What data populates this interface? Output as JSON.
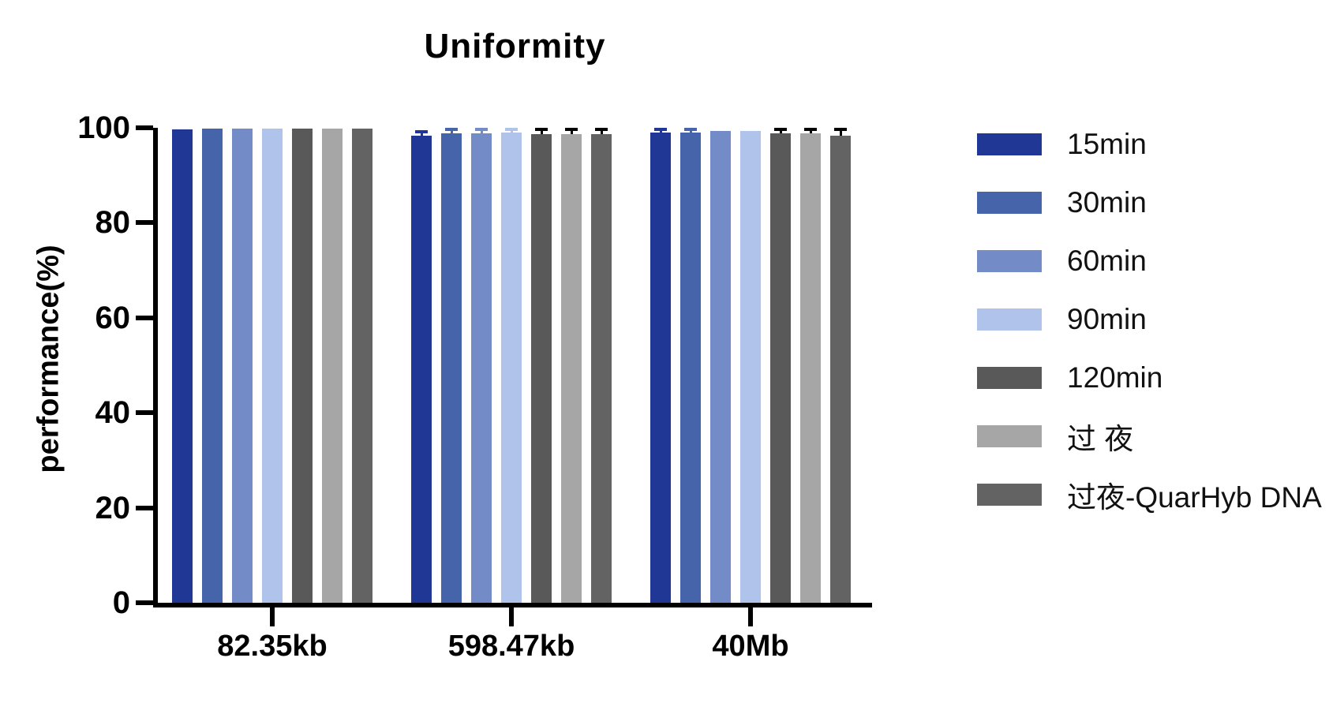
{
  "chart_data": {
    "type": "bar",
    "title": "Uniformity",
    "xlabel": "",
    "ylabel": "performance(%)",
    "categories": [
      "82.35kb",
      "598.47kb",
      "40Mb"
    ],
    "y_ticks": [
      0,
      20,
      40,
      60,
      80,
      100
    ],
    "ylim": [
      0,
      100
    ],
    "grid": false,
    "legend_position": "right",
    "background_color": "#FFFFFF",
    "axis_color": "#000000",
    "text_color": "#000000",
    "series": [
      {
        "name": "15min",
        "color": "#213796",
        "err_color": "self",
        "values": [
          99.7,
          98.4,
          99.5
        ],
        "errors": [
          0,
          0.4,
          0.4
        ]
      },
      {
        "name": "30min",
        "color": "#4664AA",
        "err_color": "self",
        "values": [
          99.9,
          98.9,
          99.8
        ],
        "errors": [
          0,
          0.4,
          0.4
        ]
      },
      {
        "name": "60min",
        "color": "#738CC8",
        "err_color": "self",
        "values": [
          99.9,
          98.9,
          99.4
        ],
        "errors": [
          0,
          0.5,
          0
        ]
      },
      {
        "name": "90min",
        "color": "#AFC3EB",
        "err_color": "self",
        "values": [
          99.9,
          99.1,
          99.4
        ],
        "errors": [
          0,
          0.4,
          0
        ]
      },
      {
        "name": "120min",
        "color": "#595959",
        "err_color": "black",
        "values": [
          99.9,
          99.4,
          99.7
        ],
        "errors": [
          0,
          0.6,
          0.5
        ]
      },
      {
        "name": "过 夜",
        "color": "#A6A6A6",
        "err_color": "black",
        "values": [
          99.9,
          99.5,
          99.8
        ],
        "errors": [
          0,
          0.6,
          0.5
        ]
      },
      {
        "name": "过夜-QuarHyb DNA",
        "color": "#636363",
        "err_color": "black",
        "values": [
          99.9,
          99.5,
          99.4
        ],
        "errors": [
          0,
          0.6,
          1.0
        ]
      }
    ]
  }
}
